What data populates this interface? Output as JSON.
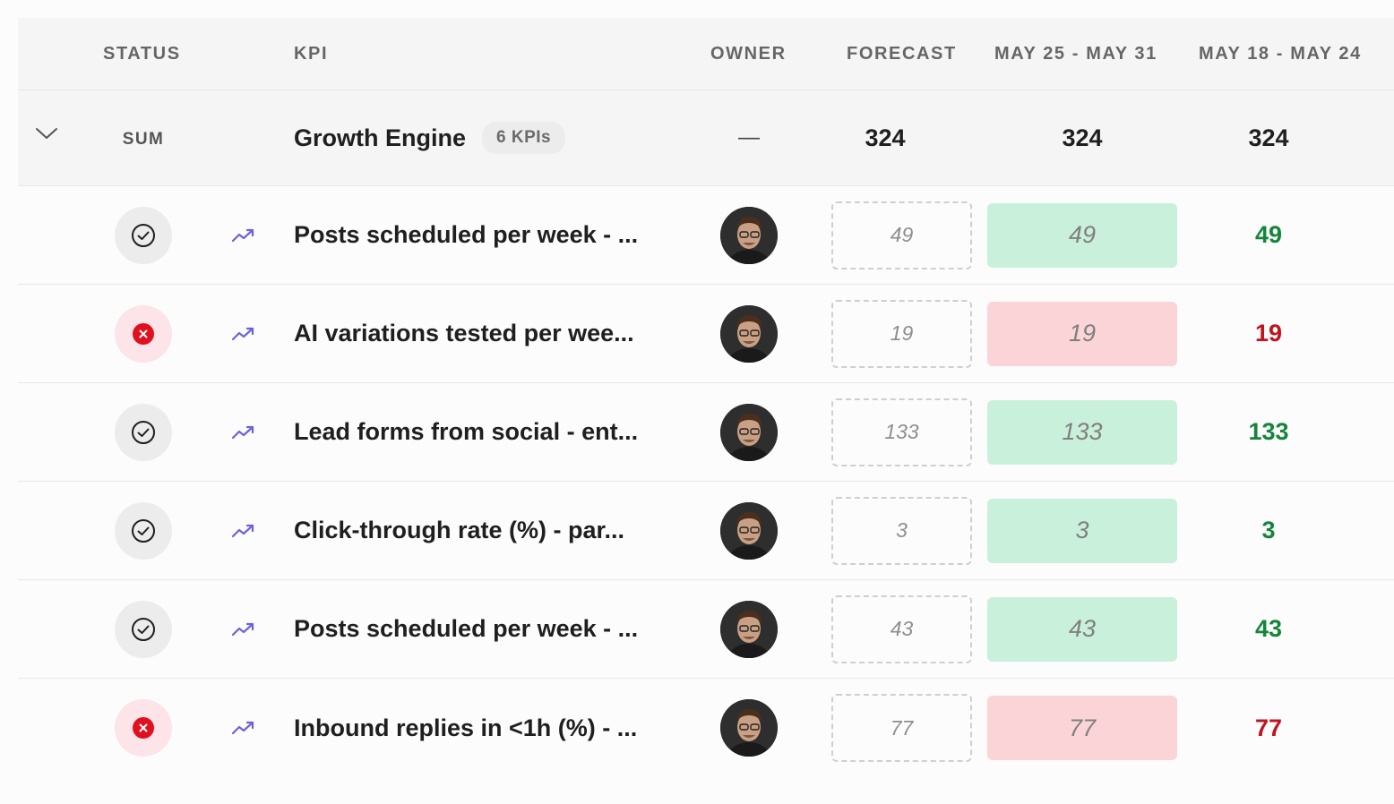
{
  "columns": {
    "status": "STATUS",
    "kpi": "KPI",
    "owner": "OWNER",
    "forecast": "FORECAST",
    "week1": "MAY 25 - MAY 31",
    "week2": "MAY 18 - MAY 24"
  },
  "group": {
    "status_label": "SUM",
    "title": "Growth Engine",
    "badge": "6 KPIs",
    "owner": "—",
    "forecast": "324",
    "week1": "324",
    "week2": "324"
  },
  "rows": [
    {
      "status": "on-track",
      "name": "Posts scheduled per week - ...",
      "forecast": "49",
      "week1": "49",
      "week2": "49"
    },
    {
      "status": "off-track",
      "name": "AI variations tested per wee...",
      "forecast": "19",
      "week1": "19",
      "week2": "19"
    },
    {
      "status": "on-track",
      "name": "Lead forms from social - ent...",
      "forecast": "133",
      "week1": "133",
      "week2": "133"
    },
    {
      "status": "on-track",
      "name": "Click-through rate (%) - par...",
      "forecast": "3",
      "week1": "3",
      "week2": "3"
    },
    {
      "status": "on-track",
      "name": "Posts scheduled per week - ...",
      "forecast": "43",
      "week1": "43",
      "week2": "43"
    },
    {
      "status": "off-track",
      "name": "Inbound replies in <1h (%) - ...",
      "forecast": "77",
      "week1": "77",
      "week2": "77"
    }
  ],
  "colors": {
    "good_text": "#14853a",
    "bad_text": "#c0141f",
    "good_fill": "#c9f0da",
    "bad_fill": "#fad4d6",
    "trend_icon": "#6b63d9",
    "bad_icon": "#e0101f"
  },
  "icons": {
    "expand": "chevron-down-icon",
    "on_track": "check-circle-icon",
    "off_track": "x-circle-icon",
    "trend": "trending-up-icon",
    "owner": "avatar"
  }
}
